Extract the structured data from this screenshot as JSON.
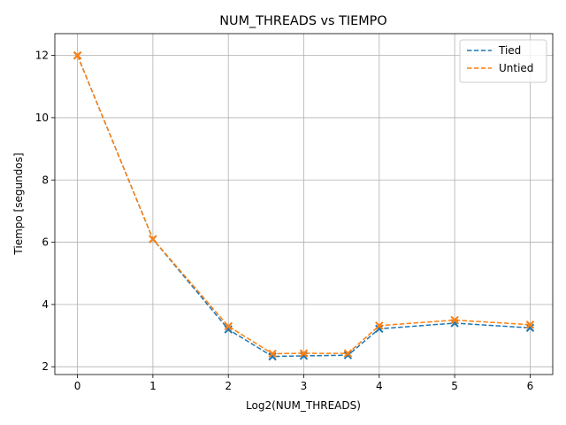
{
  "chart_data": {
    "type": "line",
    "title": "NUM_THREADS vs TIEMPO",
    "x_label": "Log2(NUM_THREADS)",
    "y_label": "Tiempo [segundos]",
    "x": [
      0,
      1,
      2,
      2.585,
      3,
      3.585,
      4,
      5,
      6
    ],
    "series": [
      {
        "name": "Tied",
        "color": "#1f77b4",
        "values": [
          12.0,
          6.1,
          3.2,
          2.33,
          2.35,
          2.37,
          3.22,
          3.4,
          3.25
        ]
      },
      {
        "name": "Untied",
        "color": "#ff7f0e",
        "values": [
          12.0,
          6.1,
          3.3,
          2.42,
          2.43,
          2.43,
          3.32,
          3.5,
          3.35
        ]
      }
    ],
    "xlim": [
      -0.3,
      6.3
    ],
    "ylim": [
      1.75,
      12.7
    ],
    "xticks": [
      0,
      1,
      2,
      3,
      4,
      5,
      6
    ],
    "yticks": [
      2,
      4,
      6,
      8,
      10,
      12
    ],
    "grid": true,
    "legend": "upper-right",
    "line_style": "dashed",
    "marker": "x"
  }
}
